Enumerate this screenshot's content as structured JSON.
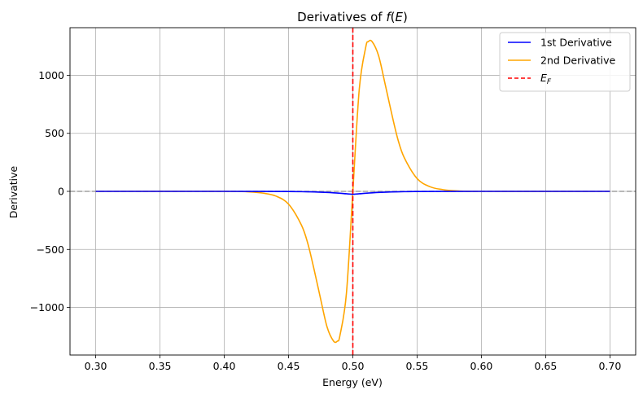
{
  "chart_data": {
    "type": "line",
    "title": "Derivatives of f(E)",
    "title_parts": {
      "prefix": "Derivatives of ",
      "f": "f",
      "open": "(",
      "E": "E",
      "close": ")"
    },
    "xlabel": "Energy (eV)",
    "ylabel": "Derivative",
    "xlim": [
      0.28,
      0.72
    ],
    "ylim": [
      -1410,
      1410
    ],
    "xticks": [
      0.3,
      0.35,
      0.4,
      0.45,
      0.5,
      0.55,
      0.6,
      0.65,
      0.7
    ],
    "xtick_labels": [
      "0.30",
      "0.35",
      "0.40",
      "0.45",
      "0.50",
      "0.55",
      "0.60",
      "0.65",
      "0.70"
    ],
    "yticks": [
      -1000,
      -500,
      0,
      500,
      1000
    ],
    "ytick_labels": [
      "−1000",
      "−500",
      "0",
      "500",
      "1000"
    ],
    "grid": true,
    "legend_position": "top-right",
    "series": [
      {
        "name": "1st Derivative",
        "color": "#0000ff",
        "x": [
          0.3,
          0.4,
          0.43,
          0.45,
          0.46,
          0.47,
          0.48,
          0.485,
          0.49,
          0.495,
          0.5,
          0.505,
          0.51,
          0.515,
          0.52,
          0.53,
          0.54,
          0.55,
          0.57,
          0.6,
          0.7
        ],
        "y": [
          0,
          0,
          -0.3,
          -1.3,
          -2.6,
          -5,
          -9.2,
          -12.4,
          -16.1,
          -20.9,
          -25,
          -20.9,
          -16.1,
          -12.4,
          -9.2,
          -5,
          -2.6,
          -1.3,
          -0.3,
          0,
          0
        ]
      },
      {
        "name": "2nd Derivative",
        "color": "#ffa500",
        "x": [
          0.3,
          0.4,
          0.42,
          0.43,
          0.44,
          0.45,
          0.46,
          0.465,
          0.47,
          0.475,
          0.48,
          0.485,
          0.488,
          0.49,
          0.495,
          0.5,
          0.505,
          0.51,
          0.512,
          0.515,
          0.52,
          0.525,
          0.53,
          0.535,
          0.54,
          0.55,
          0.56,
          0.57,
          0.58,
          0.6,
          0.7
        ],
        "y": [
          0,
          0,
          -5,
          -15,
          -40,
          -110,
          -290,
          -450,
          -680,
          -930,
          -1170,
          -1290,
          -1290,
          -1240,
          -880,
          0,
          880,
          1240,
          1290,
          1290,
          1170,
          930,
          680,
          450,
          290,
          110,
          40,
          15,
          5,
          0,
          0
        ]
      },
      {
        "name": "E_F",
        "label_main": "E",
        "label_sub": "F",
        "color": "#ff0000",
        "style": "dashed",
        "x": [
          0.5,
          0.5
        ],
        "y": [
          -1410,
          1410
        ]
      }
    ],
    "reference_line": {
      "y": 0,
      "color": "#a0a0a0",
      "style": "dashed"
    }
  }
}
